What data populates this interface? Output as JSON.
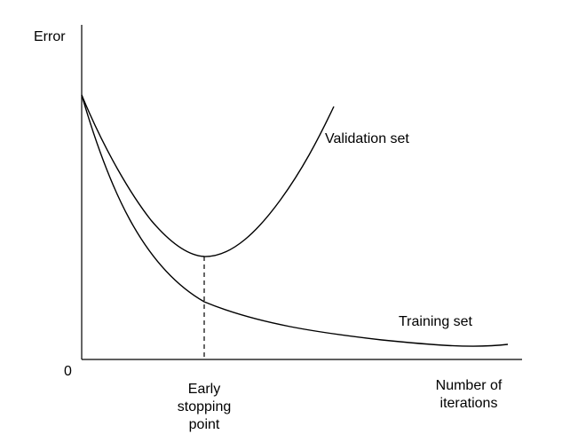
{
  "diagram": {
    "y_axis_label": "Error",
    "origin_label": "0",
    "x_axis_label_lines": [
      "Number of",
      "iterations"
    ],
    "stop_label_lines": [
      "Early",
      "stopping",
      "point"
    ],
    "validation_label": "Validation set",
    "training_label": "Training set"
  },
  "colors": {
    "line": "#000000",
    "background": "#ffffff"
  }
}
